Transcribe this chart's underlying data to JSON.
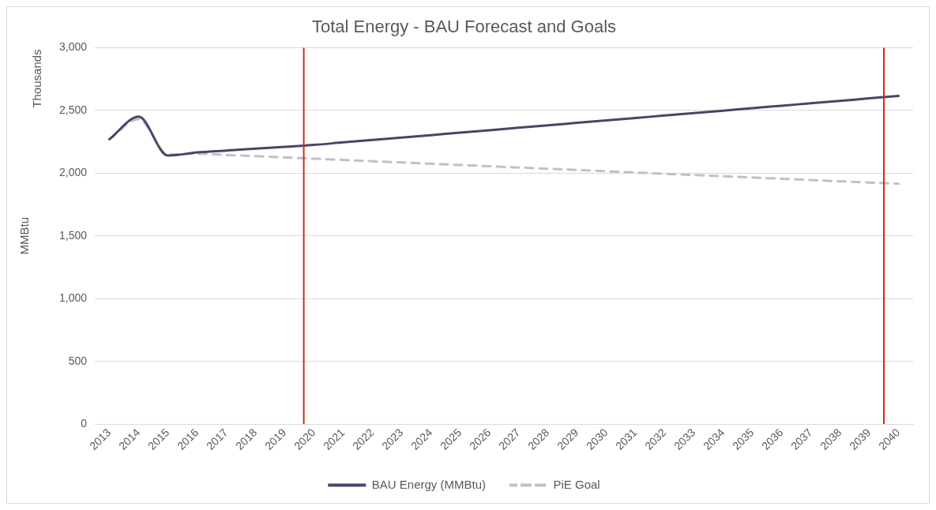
{
  "chart_data": {
    "type": "line",
    "title": "Total Energy - BAU Forecast and Goals",
    "ylabel": "MMBtu",
    "annotations": [
      "Thousands"
    ],
    "x": [
      2013,
      2014,
      2015,
      2016,
      2017,
      2018,
      2019,
      2020,
      2021,
      2022,
      2023,
      2024,
      2025,
      2026,
      2027,
      2028,
      2029,
      2030,
      2031,
      2032,
      2033,
      2034,
      2035,
      2036,
      2037,
      2038,
      2039,
      2040
    ],
    "xlim": [
      2012.5,
      2040.5
    ],
    "xticks": [
      2013,
      2014,
      2015,
      2016,
      2017,
      2018,
      2019,
      2020,
      2021,
      2022,
      2023,
      2024,
      2025,
      2026,
      2027,
      2028,
      2029,
      2030,
      2031,
      2032,
      2033,
      2034,
      2035,
      2036,
      2037,
      2038,
      2039,
      2040
    ],
    "ylim": [
      0,
      3000
    ],
    "yticks": [
      0,
      500,
      {
        "value": 1000,
        "label": "1,000"
      },
      {
        "value": 1500,
        "label": "1,500"
      },
      {
        "value": 2000,
        "label": "2,000"
      },
      {
        "value": 2500,
        "label": "2,500"
      },
      {
        "value": 3000,
        "label": "3,000"
      }
    ],
    "series": [
      {
        "name": "BAU Energy (MMBtu)",
        "color": "#4a4468",
        "line_style": "solid",
        "values": [
          2270,
          2450,
          2140,
          2165,
          2180,
          2195,
          2210,
          2225,
          2245,
          2264,
          2284,
          2303,
          2323,
          2342,
          2362,
          2381,
          2401,
          2420,
          2440,
          2459,
          2479,
          2498,
          2518,
          2537,
          2557,
          2576,
          2596,
          2615
        ]
      },
      {
        "name": "PiE Goal",
        "color": "#c0bfcc",
        "line_style": "dashed",
        "values": [
          2270,
          2430,
          2150,
          2155,
          2145,
          2135,
          2125,
          2115,
          2105,
          2095,
          2085,
          2075,
          2065,
          2055,
          2045,
          2035,
          2025,
          2015,
          2005,
          1995,
          1985,
          1975,
          1965,
          1955,
          1945,
          1935,
          1925,
          1915
        ]
      }
    ],
    "ref_lines": [
      {
        "axis": "x",
        "value": 2019.65,
        "color": "#d42a1a"
      },
      {
        "axis": "x",
        "value": 2039.5,
        "color": "#d42a1a"
      }
    ],
    "grid": "y",
    "legend": "bottom",
    "marker": "none"
  }
}
